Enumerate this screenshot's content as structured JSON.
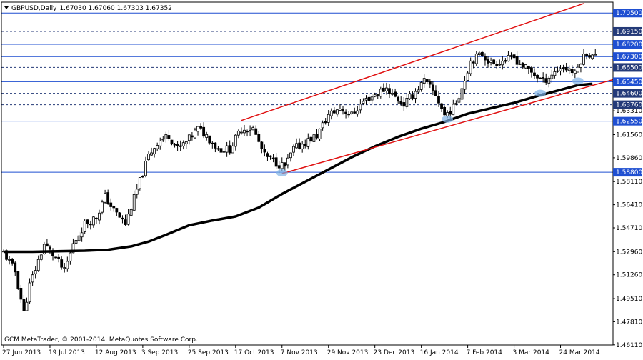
{
  "header": {
    "symbol": "GBPUSD,Daily",
    "ohlc": "1.67030 1.67060 1.67303 1.67352"
  },
  "footer": {
    "copyright": "GCM MetaTrader, © 2001-2014, MetaQuotes Software Corp."
  },
  "colors": {
    "background": "#ffffff",
    "frame": "#000000",
    "candle_up": "#ffffff",
    "candle_down": "#000000",
    "hline_blue": "#1f4fd1",
    "hline_dotted": "#243a78",
    "trend_red": "#e01010",
    "ma": "#000000",
    "touch_marker": "#7fb2e6"
  },
  "chart_data": {
    "type": "candlestick",
    "title": "GBPUSD,Daily",
    "ylim": [
      1.461,
      1.713
    ],
    "y_ticks": [
      "1.70500",
      "1.69150",
      "1.68200",
      "1.67300",
      "1.66500",
      "1.65450",
      "1.64600",
      "1.63760",
      "1.63310",
      "1.62550",
      "1.61560",
      "1.59860",
      "1.58800",
      "1.58110",
      "1.56410",
      "1.54710",
      "1.52960",
      "1.51260",
      "1.49510",
      "1.47810",
      "1.46110"
    ],
    "x_ticks": [
      "27 Jun 2013",
      "19 Jul 2013",
      "12 Aug 2013",
      "3 Sep 2013",
      "25 Sep 2013",
      "17 Oct 2013",
      "7 Nov 2013",
      "29 Nov 2013",
      "23 Dec 2013",
      "16 Jan 2014",
      "7 Feb 2014",
      "3 Mar 2014",
      "24 Mar 2014"
    ],
    "x_tick_index": [
      0,
      16,
      32,
      48,
      64,
      80,
      96,
      112,
      128,
      144,
      160,
      176,
      192
    ],
    "num_bars": 205,
    "horizontal_levels": [
      {
        "price": 1.705,
        "label": "1.70500",
        "style": "solid"
      },
      {
        "price": 1.6915,
        "label": "1.69150",
        "style": "dashed"
      },
      {
        "price": 1.682,
        "label": "1.68200",
        "style": "solid"
      },
      {
        "price": 1.673,
        "label": "1.67300",
        "style": "solid"
      },
      {
        "price": 1.665,
        "label": "1.66500",
        "style": "dashed"
      },
      {
        "price": 1.6545,
        "label": "1.65450",
        "style": "solid"
      },
      {
        "price": 1.646,
        "label": "1.64600",
        "style": "dashed"
      },
      {
        "price": 1.6376,
        "label": "1.63760",
        "style": "dashed"
      },
      {
        "price": 1.6255,
        "label": "1.62550",
        "style": "solid"
      },
      {
        "price": 1.588,
        "label": "1.58800",
        "style": "solid"
      }
    ],
    "trendlines": [
      {
        "name": "upper channel",
        "x": [
          82,
          200
        ],
        "y": [
          1.626,
          1.712
        ]
      },
      {
        "name": "lower channel",
        "x": [
          96,
          210
        ],
        "y": [
          1.587,
          1.656
        ]
      }
    ],
    "touch_points": [
      {
        "x": 96,
        "y": 1.5875
      },
      {
        "x": 153,
        "y": 1.627
      },
      {
        "x": 185,
        "y": 1.646
      },
      {
        "x": 198,
        "y": 1.655
      }
    ],
    "moving_average": [
      [
        0,
        1.5295
      ],
      [
        10,
        1.5295
      ],
      [
        20,
        1.53
      ],
      [
        28,
        1.5303
      ],
      [
        36,
        1.531
      ],
      [
        44,
        1.5335
      ],
      [
        50,
        1.537
      ],
      [
        56,
        1.542
      ],
      [
        64,
        1.549
      ],
      [
        72,
        1.5525
      ],
      [
        80,
        1.5555
      ],
      [
        88,
        1.562
      ],
      [
        96,
        1.572
      ],
      [
        104,
        1.581
      ],
      [
        112,
        1.59
      ],
      [
        120,
        1.599
      ],
      [
        128,
        1.607
      ],
      [
        136,
        1.614
      ],
      [
        144,
        1.62
      ],
      [
        152,
        1.625
      ],
      [
        160,
        1.631
      ],
      [
        168,
        1.635
      ],
      [
        176,
        1.639
      ],
      [
        184,
        1.644
      ],
      [
        192,
        1.6485
      ],
      [
        198,
        1.652
      ],
      [
        203,
        1.653
      ]
    ],
    "price_anchors": [
      [
        0,
        1.529
      ],
      [
        4,
        1.515
      ],
      [
        7,
        1.485
      ],
      [
        9,
        1.505
      ],
      [
        14,
        1.535
      ],
      [
        18,
        1.525
      ],
      [
        21,
        1.515
      ],
      [
        24,
        1.535
      ],
      [
        28,
        1.55
      ],
      [
        32,
        1.555
      ],
      [
        35,
        1.57
      ],
      [
        38,
        1.56
      ],
      [
        42,
        1.55
      ],
      [
        46,
        1.575
      ],
      [
        50,
        1.6
      ],
      [
        53,
        1.61
      ],
      [
        57,
        1.615
      ],
      [
        60,
        1.605
      ],
      [
        63,
        1.61
      ],
      [
        67,
        1.62
      ],
      [
        70,
        1.615
      ],
      [
        74,
        1.605
      ],
      [
        78,
        1.605
      ],
      [
        82,
        1.62
      ],
      [
        86,
        1.62
      ],
      [
        90,
        1.6
      ],
      [
        94,
        1.595
      ],
      [
        97,
        1.592
      ],
      [
        100,
        1.605
      ],
      [
        104,
        1.61
      ],
      [
        108,
        1.615
      ],
      [
        112,
        1.63
      ],
      [
        116,
        1.635
      ],
      [
        120,
        1.63
      ],
      [
        124,
        1.64
      ],
      [
        128,
        1.645
      ],
      [
        132,
        1.65
      ],
      [
        135,
        1.643
      ],
      [
        138,
        1.638
      ],
      [
        141,
        1.645
      ],
      [
        145,
        1.655
      ],
      [
        149,
        1.645
      ],
      [
        152,
        1.63
      ],
      [
        155,
        1.635
      ],
      [
        158,
        1.65
      ],
      [
        161,
        1.67
      ],
      [
        165,
        1.675
      ],
      [
        168,
        1.668
      ],
      [
        172,
        1.67
      ],
      [
        176,
        1.672
      ],
      [
        179,
        1.666
      ],
      [
        183,
        1.66
      ],
      [
        186,
        1.655
      ],
      [
        189,
        1.66
      ],
      [
        192,
        1.665
      ],
      [
        195,
        1.664
      ],
      [
        197,
        1.66
      ],
      [
        199,
        1.67
      ],
      [
        201,
        1.676
      ],
      [
        203,
        1.673
      ]
    ]
  }
}
